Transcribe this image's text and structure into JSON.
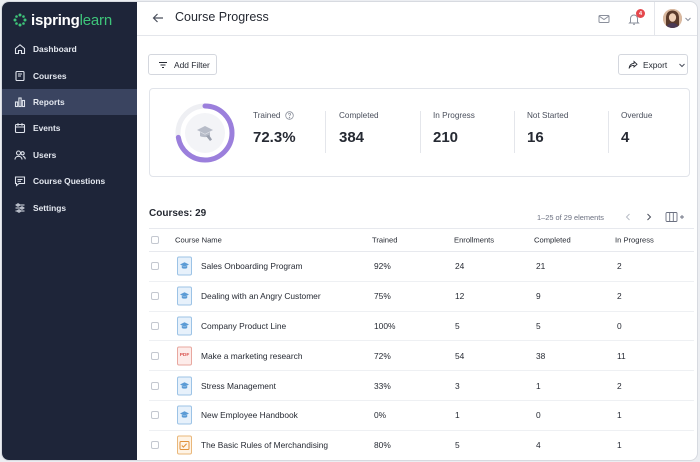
{
  "brand": {
    "name_bold": "ispring",
    "name_light": "learn",
    "accent": "#3ec47a"
  },
  "sidebar": {
    "items": [
      {
        "label": "Dashboard",
        "icon": "home-icon"
      },
      {
        "label": "Courses",
        "icon": "book-icon"
      },
      {
        "label": "Reports",
        "icon": "bar-chart-icon",
        "active": true
      },
      {
        "label": "Events",
        "icon": "calendar-icon"
      },
      {
        "label": "Users",
        "icon": "users-icon"
      },
      {
        "label": "Course Questions",
        "icon": "chat-icon"
      },
      {
        "label": "Settings",
        "icon": "sliders-icon"
      }
    ]
  },
  "header": {
    "title": "Course Progress",
    "notifications_count": "4"
  },
  "toolbar": {
    "filter_label": "Add Filter",
    "export_label": "Export"
  },
  "stats": {
    "trained_percent": 72.3,
    "ring_color": "#9b7fdc",
    "items": [
      {
        "label": "Trained",
        "value": "72.3%"
      },
      {
        "label": "Completed",
        "value": "384"
      },
      {
        "label": "In Progress",
        "value": "210"
      },
      {
        "label": "Not Started",
        "value": "16"
      },
      {
        "label": "Overdue",
        "value": "4"
      }
    ]
  },
  "courses": {
    "title": "Courses: 29",
    "pager": "1–25 of 29 elements",
    "columns": [
      "Course Name",
      "Trained",
      "Enrollments",
      "Completed",
      "In Progress"
    ],
    "rows": [
      {
        "name": "Sales Onboarding Program",
        "trained": "92%",
        "enrollments": "24",
        "completed": "21",
        "in_progress": "2",
        "icon": "course-icon"
      },
      {
        "name": "Dealing with an Angry Customer",
        "trained": "75%",
        "enrollments": "12",
        "completed": "9",
        "in_progress": "2",
        "icon": "course-icon"
      },
      {
        "name": "Company Product Line",
        "trained": "100%",
        "enrollments": "5",
        "completed": "5",
        "in_progress": "0",
        "icon": "course-icon"
      },
      {
        "name": "Make a marketing research",
        "trained": "72%",
        "enrollments": "54",
        "completed": "38",
        "in_progress": "11",
        "icon": "pdf-icon",
        "icon_text": "PDF"
      },
      {
        "name": "Stress Management",
        "trained": "33%",
        "enrollments": "3",
        "completed": "1",
        "in_progress": "2",
        "icon": "course-icon"
      },
      {
        "name": "New Employee Handbook",
        "trained": "0%",
        "enrollments": "1",
        "completed": "0",
        "in_progress": "1",
        "icon": "course-icon"
      },
      {
        "name": "The Basic Rules of Merchandising",
        "trained": "80%",
        "enrollments": "5",
        "completed": "4",
        "in_progress": "1",
        "icon": "checklist-icon"
      }
    ]
  }
}
